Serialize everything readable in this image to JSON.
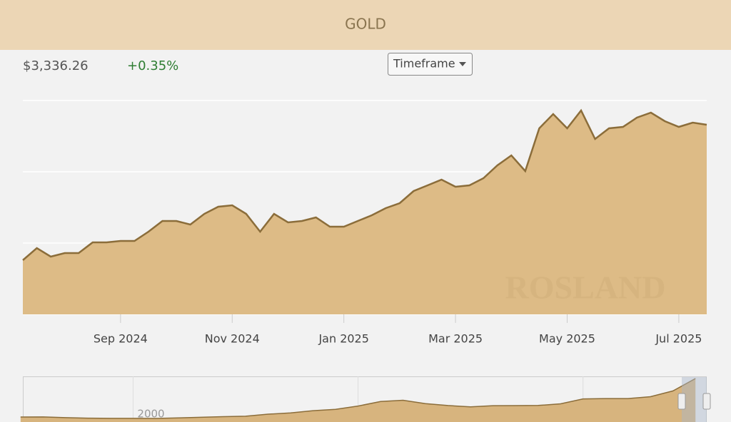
{
  "header": {
    "title": "GOLD",
    "price": "$3,336.26",
    "change": "+0.35%",
    "button": "Timeframe"
  },
  "watermark": "ROSLAND",
  "chart_data": [
    {
      "type": "area",
      "color": "#ddbb86",
      "line_color": "#8b6d3a",
      "grid": true,
      "categories": [
        null,
        null,
        null,
        null,
        null,
        null,
        null,
        "Sep 2024",
        null,
        null,
        null,
        null,
        null,
        null,
        null,
        "Nov 2024",
        null,
        null,
        null,
        null,
        null,
        null,
        null,
        "Jan 2025",
        null,
        null,
        null,
        null,
        null,
        null,
        null,
        "Mar 2025",
        null,
        null,
        null,
        null,
        null,
        null,
        null,
        "May 2025",
        null,
        null,
        null,
        null,
        null,
        null,
        null,
        "Jul 2025",
        null,
        null
      ],
      "values": [
        2380,
        2465,
        2405,
        2430,
        2430,
        2505,
        2505,
        2515,
        2515,
        2580,
        2655,
        2655,
        2630,
        2705,
        2755,
        2765,
        2705,
        2580,
        2705,
        2645,
        2655,
        2680,
        2615,
        2615,
        2655,
        2695,
        2745,
        2780,
        2865,
        2905,
        2945,
        2895,
        2905,
        2955,
        3045,
        3115,
        3005,
        3305,
        3405,
        3305,
        3430,
        3230,
        3305,
        3315,
        3380,
        3415,
        3355,
        3315,
        3345,
        3330
      ],
      "ylim": [
        2000,
        3500
      ],
      "yticks": [
        2000,
        2500,
        3000
      ]
    },
    {
      "type": "area",
      "color": "#d7b47e",
      "line_color": "#8b6d3a",
      "grid": true,
      "x": [
        1995,
        1996,
        1997,
        1998,
        1999,
        2000,
        2001,
        2002,
        2003,
        2004,
        2005,
        2006,
        2007,
        2008,
        2009,
        2010,
        2011,
        2012,
        2013,
        2014,
        2015,
        2016,
        2017,
        2018,
        2019,
        2020,
        2021,
        2022,
        2023,
        2024,
        2025
      ],
      "values": [
        385,
        388,
        331,
        294,
        279,
        279,
        271,
        310,
        363,
        409,
        444,
        603,
        695,
        872,
        972,
        1225,
        1571,
        1669,
        1411,
        1266,
        1160,
        1251,
        1257,
        1268,
        1393,
        1770,
        1799,
        1800,
        1943,
        2386,
        3336
      ],
      "xlim": [
        1995.1,
        2025.5
      ],
      "xticks": [
        2000,
        2010,
        2020
      ],
      "ylim": [
        0,
        3500
      ]
    }
  ]
}
